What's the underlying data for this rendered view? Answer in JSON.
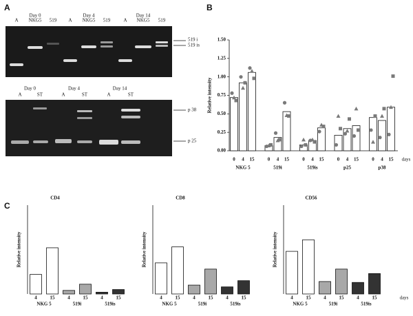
{
  "panel_labels": [
    "A",
    "B",
    "C"
  ],
  "gels": {
    "top": {
      "lanes": [
        "A",
        "NKG5",
        "519",
        "A",
        "NKG5",
        "519",
        "A",
        "NKG5",
        "519"
      ],
      "days": [
        "Day 0",
        "Day 4",
        "Day 14"
      ],
      "markers": [
        "519 i",
        "519 is"
      ]
    },
    "bottom": {
      "lanes": [
        "A",
        "ST",
        "A",
        "ST",
        "A",
        "ST"
      ],
      "days": [
        "Day 0",
        "Day 4",
        "Day 14"
      ],
      "markers": [
        "p 38",
        "p 25"
      ]
    }
  },
  "chart_data": [
    {
      "type": "bar",
      "y_label": "Relative intensity",
      "x_unit": "days",
      "groups": [
        "NKG 5",
        "519i",
        "519is",
        "p25",
        "p38"
      ],
      "categories": [
        "0",
        "4",
        "15",
        "0",
        "4",
        "15",
        "0",
        "4",
        "15",
        "0",
        "4",
        "15",
        "0",
        "4",
        "15"
      ],
      "values": [
        0.72,
        0.92,
        1.06,
        0.07,
        0.18,
        0.53,
        0.08,
        0.14,
        0.31,
        0.21,
        0.3,
        0.34,
        0.45,
        0.41,
        0.59
      ],
      "color": "#ffffff",
      "replicates": [
        {
          "marker": "circle",
          "color": "#7a7a7a",
          "values": [
            0.78,
            1.0,
            1.12,
            0.06,
            0.24,
            0.65,
            0.06,
            0.14,
            0.26,
            0.08,
            0.23,
            0.2,
            0.28,
            0.18,
            0.22
          ]
        },
        {
          "marker": "square",
          "color": "#7a7a7a",
          "values": [
            0.68,
            0.92,
            0.98,
            0.08,
            0.15,
            0.47,
            0.08,
            0.12,
            0.33,
            0.3,
            0.43,
            0.28,
            0.47,
            0.57,
            1.01
          ]
        },
        {
          "marker": "triangle",
          "color": "#7a7a7a",
          "values": [
            0.72,
            0.85,
            1.08,
            0.07,
            0.14,
            0.48,
            0.15,
            0.15,
            0.35,
            0.47,
            0.27,
            0.57,
            0.12,
            0.47,
            0.59
          ]
        }
      ],
      "ylim": [
        0,
        1.5
      ],
      "yticks": [
        {
          "value": 0,
          "label": "0.00"
        },
        {
          "value": 0.25,
          "label": "0.25"
        },
        {
          "value": 0.5,
          "label": "0.50"
        },
        {
          "value": 0.75,
          "label": "0.75"
        },
        {
          "value": 1,
          "label": "1.00"
        },
        {
          "value": 1.25,
          "label": "1.25"
        },
        {
          "value": 1.5,
          "label": "1.50"
        }
      ]
    },
    {
      "type": "bar",
      "title": "CD4",
      "y_label": "Relative intensity",
      "groups": [
        "NKG 5",
        "519i",
        "519is"
      ],
      "group_colors": [
        "#ffffff",
        "#a8a8a8",
        "#333333"
      ],
      "categories": [
        "4",
        "15",
        "4",
        "15",
        "4",
        "15"
      ],
      "values": [
        0.22,
        0.52,
        0.04,
        0.11,
        0.02,
        0.05
      ],
      "ylim": [
        0,
        1
      ]
    },
    {
      "type": "bar",
      "title": "CD8",
      "y_label": "Relative intensity",
      "groups": [
        "NKG 5",
        "519i",
        "519is"
      ],
      "group_colors": [
        "#ffffff",
        "#a8a8a8",
        "#333333"
      ],
      "categories": [
        "4",
        "15",
        "4",
        "15",
        "4",
        "15"
      ],
      "values": [
        0.35,
        0.53,
        0.1,
        0.28,
        0.08,
        0.15
      ],
      "ylim": [
        0,
        1
      ]
    },
    {
      "type": "bar",
      "title": "CD56",
      "y_label": "Relative intensity",
      "x_unit": "days",
      "groups": [
        "NKG 5",
        "519i",
        "519is"
      ],
      "group_colors": [
        "#ffffff",
        "#a8a8a8",
        "#333333"
      ],
      "categories": [
        "4",
        "15",
        "4",
        "15",
        "4",
        "15"
      ],
      "values": [
        0.48,
        0.61,
        0.14,
        0.28,
        0.13,
        0.23
      ],
      "ylim": [
        0,
        1
      ]
    }
  ]
}
